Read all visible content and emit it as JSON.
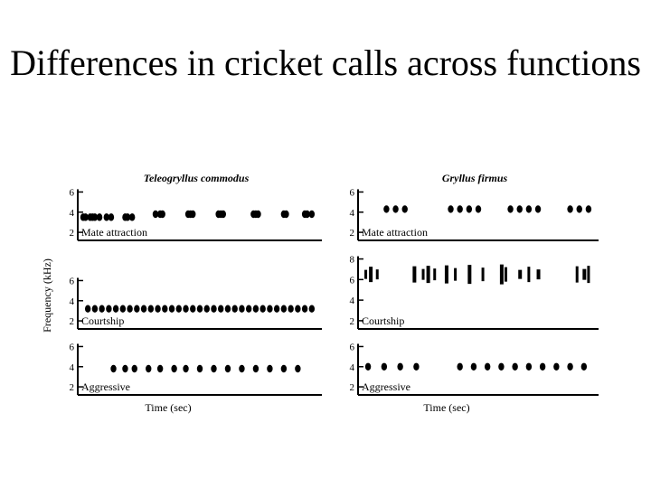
{
  "slide": {
    "title": "Differences in cricket calls across functions"
  },
  "figure": {
    "y_axis_label": "Frequency (kHz)",
    "x_axis_label": "Time (sec)"
  },
  "chart_data": {
    "type": "spectrogram",
    "columns": [
      {
        "species": "Teleogryllus commodus",
        "x_label": "Time (sec)",
        "panels": [
          {
            "label": "Mate attraction",
            "y_ticks": [
              2,
              4,
              6
            ],
            "pulses": [
              {
                "t": [
                  0.0,
                  0.01,
                  0.03,
                  0.04,
                  0.05,
                  0.07,
                  0.1,
                  0.12,
                  0.18,
                  0.19,
                  0.21
                ],
                "f": 3.5
              },
              {
                "t": [
                  0.31,
                  0.33,
                  0.34,
                  0.45,
                  0.46,
                  0.47,
                  0.58,
                  0.59,
                  0.6,
                  0.73,
                  0.74,
                  0.75,
                  0.86,
                  0.87,
                  0.95,
                  0.96,
                  0.98
                ],
                "f": 3.8
              }
            ]
          },
          {
            "label": "Courtship",
            "y_ticks": [
              2,
              4,
              6
            ],
            "pulses": [
              {
                "t": [
                  0.02,
                  0.05,
                  0.08,
                  0.11,
                  0.14,
                  0.17,
                  0.2,
                  0.23,
                  0.26,
                  0.29,
                  0.32,
                  0.35,
                  0.38,
                  0.41,
                  0.44,
                  0.47,
                  0.5,
                  0.53,
                  0.56,
                  0.59,
                  0.62,
                  0.65,
                  0.68,
                  0.71,
                  0.74,
                  0.77,
                  0.8,
                  0.83,
                  0.86,
                  0.89,
                  0.92,
                  0.95,
                  0.98
                ],
                "f": 3.2
              }
            ]
          },
          {
            "label": "Aggressive",
            "y_ticks": [
              2,
              4,
              6
            ],
            "pulses": [
              {
                "t": [
                  0.13,
                  0.18,
                  0.22,
                  0.28,
                  0.33,
                  0.39,
                  0.44,
                  0.5,
                  0.56,
                  0.62,
                  0.68,
                  0.74,
                  0.8,
                  0.86,
                  0.92
                ],
                "f": 3.8
              }
            ]
          }
        ]
      },
      {
        "species": "Gryllus firmus",
        "x_label": "Time (sec)",
        "panels": [
          {
            "label": "Mate attraction",
            "y_ticks": [
              2,
              4,
              6
            ],
            "pulses": [
              {
                "t": [
                  0.1,
                  0.14,
                  0.18,
                  0.38,
                  0.42,
                  0.46,
                  0.5,
                  0.64,
                  0.68,
                  0.72,
                  0.76,
                  0.9,
                  0.94,
                  0.98
                ],
                "f": 4.3
              }
            ]
          },
          {
            "label": "Courtship",
            "y_ticks": [
              2,
              4,
              6,
              8
            ],
            "pulses": [
              {
                "t": [
                  0.01,
                  0.03,
                  0.06,
                  0.22,
                  0.26,
                  0.28,
                  0.31,
                  0.36,
                  0.4,
                  0.46,
                  0.52,
                  0.6,
                  0.62,
                  0.68,
                  0.72,
                  0.76,
                  0.93,
                  0.96,
                  0.98
                ],
                "f": 6.5
              }
            ]
          },
          {
            "label": "Aggressive",
            "y_ticks": [
              2,
              4,
              6
            ],
            "pulses": [
              {
                "t": [
                  0.02,
                  0.09,
                  0.16,
                  0.23,
                  0.42,
                  0.48,
                  0.54,
                  0.6,
                  0.66,
                  0.72,
                  0.78,
                  0.84,
                  0.9,
                  0.96
                ],
                "f": 4.0
              }
            ]
          }
        ]
      }
    ]
  }
}
